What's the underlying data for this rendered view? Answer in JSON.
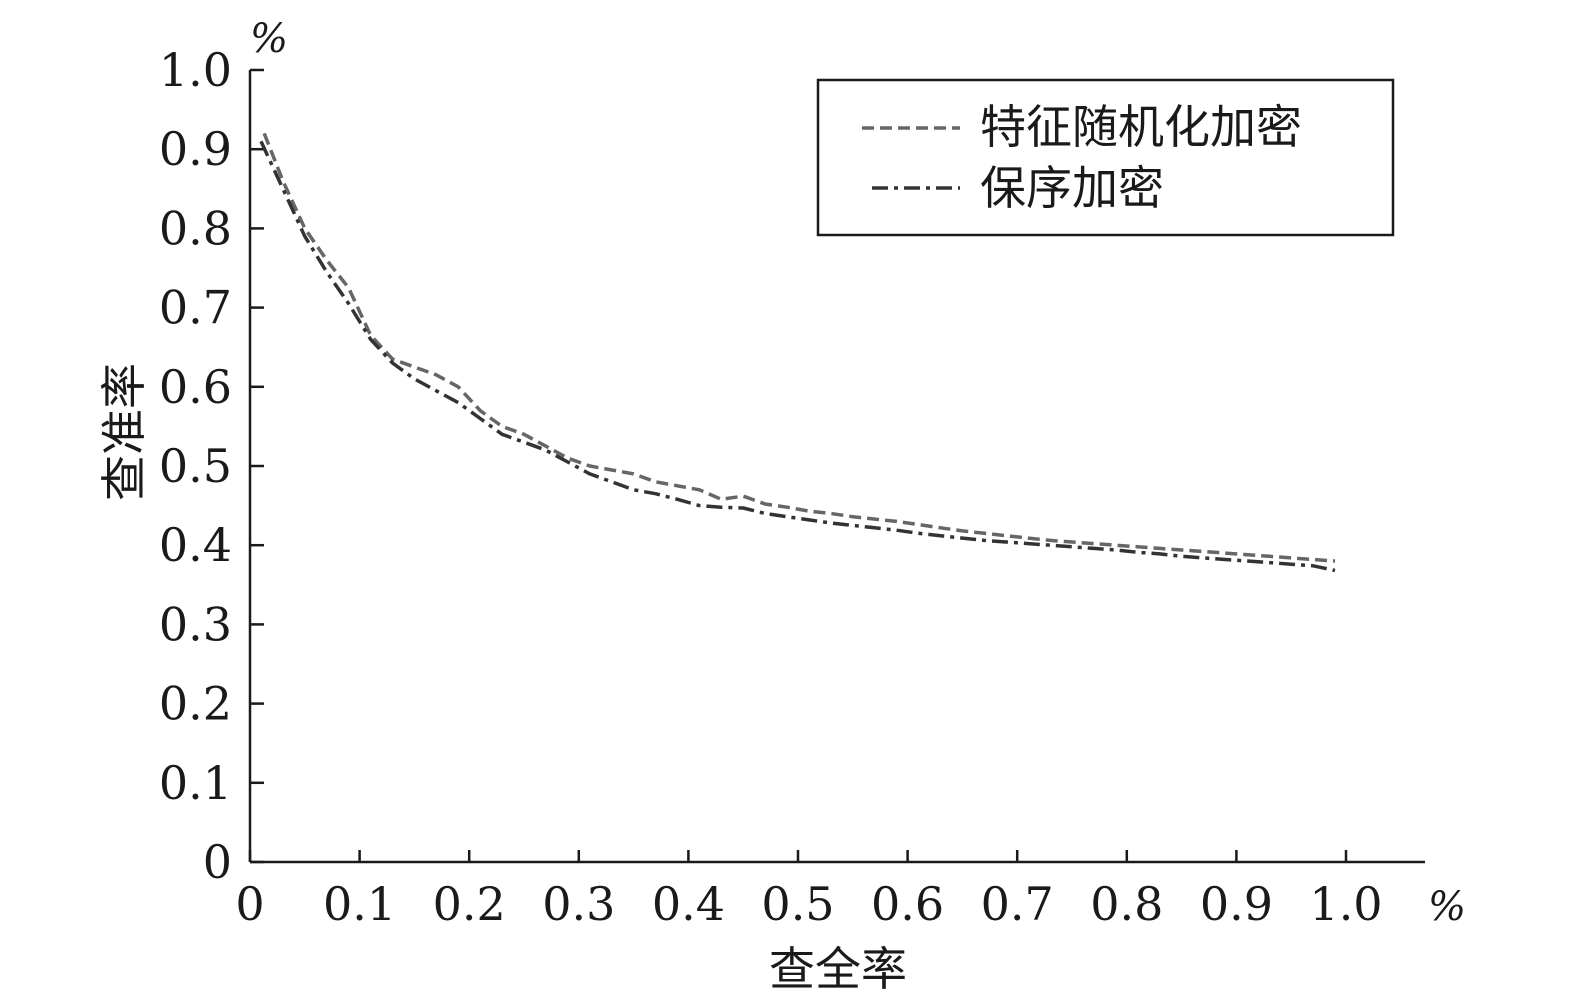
{
  "chart_data": {
    "type": "line",
    "y_unit": "%",
    "x_unit": "%",
    "xlabel": "查全率",
    "ylabel": "查准率",
    "xlim": [
      0,
      1.07
    ],
    "ylim": [
      0,
      1.0
    ],
    "x_ticks": [
      "0",
      "0.1",
      "0.2",
      "0.3",
      "0.4",
      "0.5",
      "0.6",
      "0.7",
      "0.8",
      "0.9",
      "1.0"
    ],
    "y_ticks": [
      "0",
      "0.1",
      "0.2",
      "0.3",
      "0.4",
      "0.5",
      "0.6",
      "0.7",
      "0.8",
      "0.9",
      "1.0"
    ],
    "grid": false,
    "legend_position": "top-right",
    "series": [
      {
        "name": "特征随机化加密",
        "style": "dashed",
        "color": "#666666",
        "x": [
          0.013,
          0.03,
          0.05,
          0.07,
          0.09,
          0.11,
          0.13,
          0.15,
          0.17,
          0.19,
          0.21,
          0.23,
          0.25,
          0.27,
          0.29,
          0.31,
          0.33,
          0.35,
          0.37,
          0.39,
          0.41,
          0.43,
          0.45,
          0.47,
          0.49,
          0.51,
          0.53,
          0.55,
          0.57,
          0.59,
          0.61,
          0.63,
          0.65,
          0.67,
          0.69,
          0.71,
          0.73,
          0.75,
          0.77,
          0.79,
          0.81,
          0.83,
          0.85,
          0.87,
          0.89,
          0.91,
          0.93,
          0.95,
          0.97,
          0.99
        ],
        "y": [
          0.92,
          0.86,
          0.8,
          0.76,
          0.725,
          0.665,
          0.635,
          0.625,
          0.615,
          0.6,
          0.57,
          0.55,
          0.54,
          0.525,
          0.51,
          0.5,
          0.495,
          0.49,
          0.48,
          0.475,
          0.47,
          0.458,
          0.462,
          0.452,
          0.448,
          0.443,
          0.44,
          0.436,
          0.433,
          0.43,
          0.426,
          0.422,
          0.418,
          0.415,
          0.412,
          0.409,
          0.406,
          0.404,
          0.402,
          0.4,
          0.398,
          0.396,
          0.394,
          0.392,
          0.39,
          0.388,
          0.386,
          0.384,
          0.382,
          0.38
        ]
      },
      {
        "name": "保序加密",
        "style": "dash-dot",
        "color": "#333333",
        "x": [
          0.01,
          0.03,
          0.05,
          0.07,
          0.09,
          0.11,
          0.13,
          0.15,
          0.17,
          0.19,
          0.21,
          0.23,
          0.25,
          0.27,
          0.29,
          0.31,
          0.33,
          0.35,
          0.37,
          0.39,
          0.41,
          0.43,
          0.45,
          0.47,
          0.49,
          0.51,
          0.53,
          0.55,
          0.57,
          0.59,
          0.61,
          0.63,
          0.65,
          0.67,
          0.69,
          0.71,
          0.73,
          0.75,
          0.77,
          0.79,
          0.81,
          0.83,
          0.85,
          0.87,
          0.89,
          0.91,
          0.93,
          0.95,
          0.97,
          0.99
        ],
        "y": [
          0.91,
          0.85,
          0.79,
          0.745,
          0.705,
          0.66,
          0.63,
          0.61,
          0.595,
          0.58,
          0.56,
          0.54,
          0.53,
          0.52,
          0.505,
          0.49,
          0.48,
          0.47,
          0.465,
          0.458,
          0.45,
          0.448,
          0.447,
          0.44,
          0.436,
          0.432,
          0.428,
          0.425,
          0.422,
          0.419,
          0.415,
          0.412,
          0.409,
          0.406,
          0.404,
          0.402,
          0.4,
          0.398,
          0.396,
          0.394,
          0.391,
          0.389,
          0.386,
          0.384,
          0.382,
          0.38,
          0.378,
          0.376,
          0.374,
          0.368
        ]
      }
    ]
  }
}
